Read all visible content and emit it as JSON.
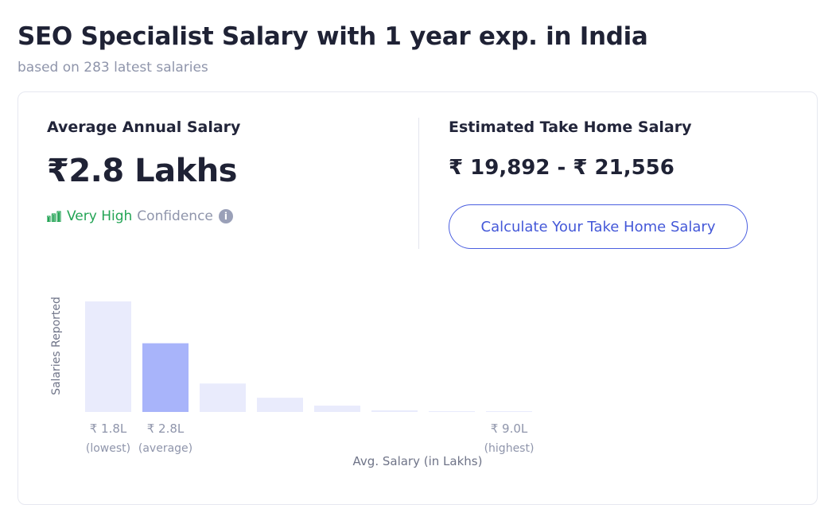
{
  "header": {
    "title": "SEO Specialist Salary with 1 year exp. in India",
    "subtitle": "based on 283 latest salaries"
  },
  "summary": {
    "avg_label": "Average Annual Salary",
    "avg_value": "₹2.8 Lakhs",
    "confidence_level": "Very High",
    "confidence_word": "Confidence",
    "take_home_label": "Estimated Take Home Salary",
    "take_home_value": "₹ 19,892 - ₹ 21,556",
    "calc_button_label": "Calculate Your Take Home Salary"
  },
  "icons": {
    "confidence": "signal-bars-icon",
    "info": "info-icon"
  },
  "colors": {
    "confidence_green": "#23a455",
    "accent_blue": "#4458d8",
    "bar_default": "#e9ebfc",
    "bar_highlight": "#a8b4fa"
  },
  "chart_data": {
    "type": "bar",
    "title": "",
    "xlabel": "Avg. Salary (in Lakhs)",
    "ylabel": "Salaries Reported",
    "categories": [
      "₹ 1.8L",
      "₹ 2.8L",
      "",
      "",
      "",
      "",
      "",
      "₹ 9.0L"
    ],
    "category_notes": [
      "(lowest)",
      "(average)",
      "",
      "",
      "",
      "",
      "",
      "(highest)"
    ],
    "values": [
      140,
      87,
      36,
      18,
      8,
      2,
      1,
      1
    ],
    "highlight_index": 1,
    "ylim": [
      0,
      140
    ],
    "grid": false,
    "legend": "none"
  }
}
